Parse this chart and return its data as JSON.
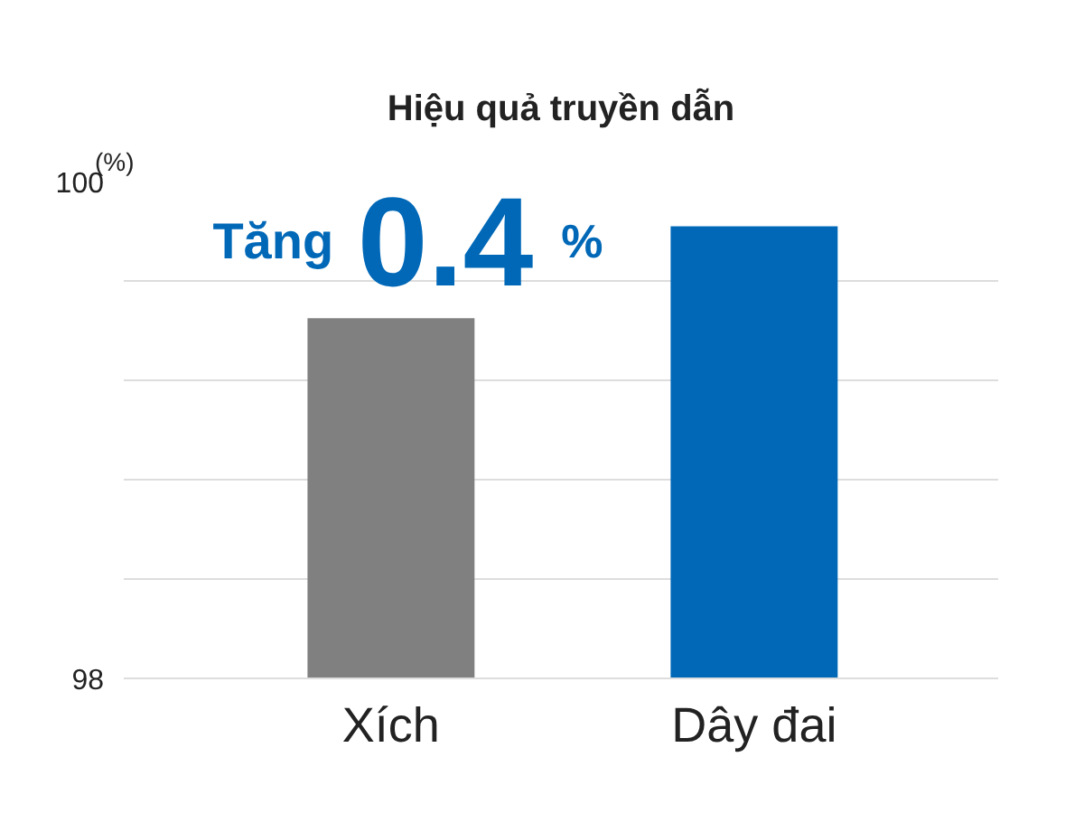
{
  "chart_data": {
    "type": "bar",
    "title": "Hiệu quả truyền dẫn",
    "ylabel": "(%)",
    "categories": [
      "Xích",
      "Dây đai"
    ],
    "values": [
      99.45,
      99.82
    ],
    "colors": [
      "#808080",
      "#0068b7"
    ],
    "ylim": [
      98,
      100
    ],
    "yticks": [
      98,
      {
        "value": 98.4,
        "label": null
      },
      {
        "value": 98.8,
        "label": null
      },
      {
        "value": 99.2,
        "label": null
      },
      {
        "value": 99.6,
        "label": null
      },
      100
    ],
    "grid": "y",
    "annotations": [
      "Tăng 0.4 %"
    ]
  }
}
